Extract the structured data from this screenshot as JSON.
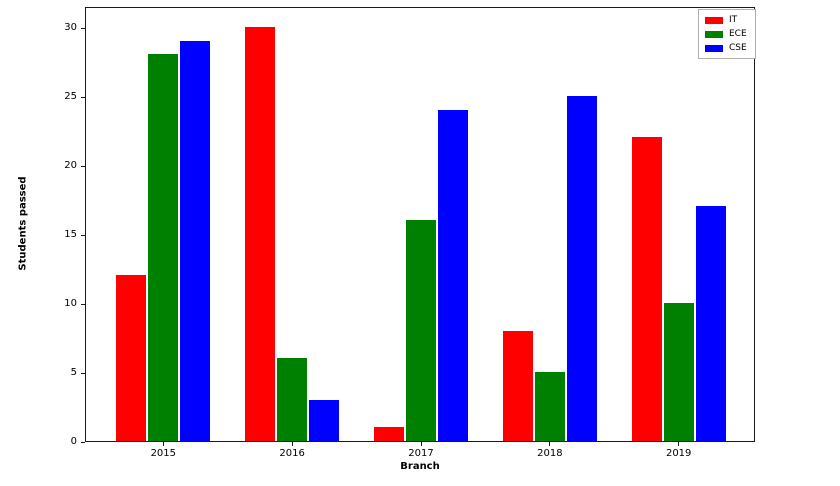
{
  "chart_data": {
    "type": "bar",
    "title": "",
    "xlabel": "Branch",
    "ylabel": "Students passed",
    "categories": [
      "2015",
      "2016",
      "2017",
      "2018",
      "2019"
    ],
    "series": [
      {
        "name": "IT",
        "color": "#ff0000",
        "values": [
          12,
          30,
          1,
          8,
          22
        ]
      },
      {
        "name": "ECE",
        "color": "#008000",
        "values": [
          28,
          6,
          16,
          5,
          10
        ]
      },
      {
        "name": "CSE",
        "color": "#0000ff",
        "values": [
          29,
          3,
          24,
          25,
          17
        ]
      }
    ],
    "ylim": [
      0,
      31.5
    ],
    "yticks": [
      0,
      5,
      10,
      15,
      20,
      25,
      30
    ],
    "legend_position": "upper right",
    "grid": false,
    "background_color": "#ffffff",
    "spine_color": "#1a1a1a"
  }
}
